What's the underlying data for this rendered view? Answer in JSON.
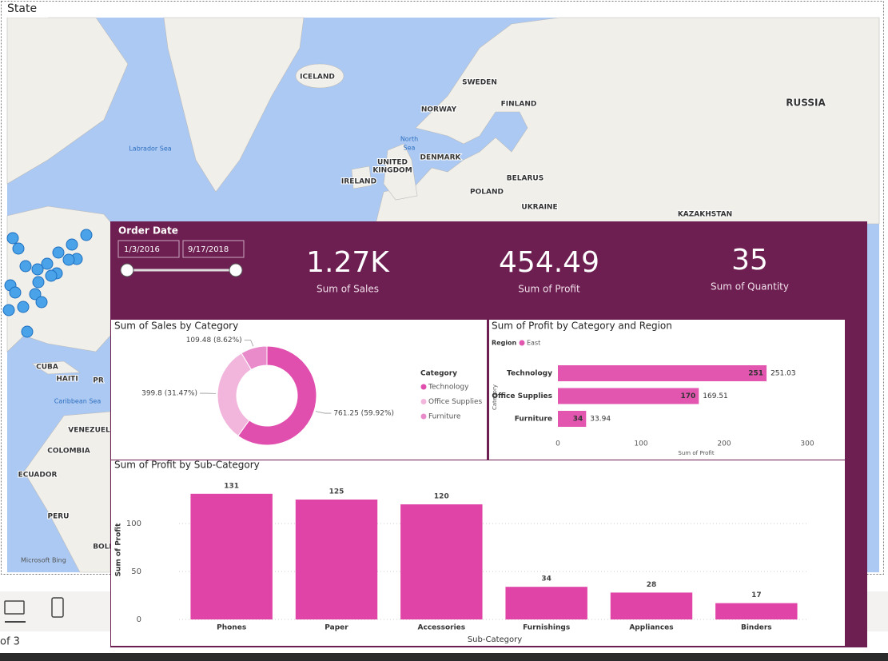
{
  "map": {
    "title": "State",
    "labels": [
      "ICELAND",
      "SWEDEN",
      "FINLAND",
      "RUSSIA",
      "NORWAY",
      "Labrador Sea",
      "North",
      "Sea",
      "DENMARK",
      "UNITED",
      "KINGDOM",
      "IRELAND",
      "BELARUS",
      "POLAND",
      "UKRAINE",
      "KAZAKHSTAN",
      "CUBA",
      "HAITI",
      "PR",
      "Caribbean Sea",
      "VENEZUELA",
      "COLOMBIA",
      "ECUADOR",
      "PERU",
      "BOLI"
    ],
    "attribution": "Microsoft Bing"
  },
  "slicer": {
    "title": "Order Date",
    "start": "1/3/2016",
    "end": "9/17/2018"
  },
  "cards": [
    {
      "value": "1.27K",
      "label": "Sum of Sales"
    },
    {
      "value": "454.49",
      "label": "Sum of Profit"
    },
    {
      "value": "35",
      "label": "Sum of Quantity"
    }
  ],
  "chart_data": [
    {
      "type": "pie",
      "donut": true,
      "title": "Sum of Sales by Category",
      "legend_title": "Category",
      "categories": [
        "Technology",
        "Office Supplies",
        "Furniture"
      ],
      "values": [
        761.25,
        399.8,
        109.48
      ],
      "value_labels": [
        "761.25 (59.92%)",
        "399.8 (31.47%)",
        "109.48 (8.62%)"
      ],
      "colors": [
        "#e04fae",
        "#f2b6dd",
        "#e98acb"
      ]
    },
    {
      "type": "bar",
      "orientation": "horizontal",
      "title": "Sum of Profit by Category and Region",
      "legend_title": "Region",
      "categories": [
        "Technology",
        "Office Supplies",
        "Furniture"
      ],
      "series": [
        {
          "name": "East",
          "color": "#e256b0",
          "values": [
            251.03,
            169.51,
            33.94
          ],
          "value_labels": [
            "251",
            "170",
            "34"
          ]
        }
      ],
      "xlim": [
        0,
        300
      ],
      "xticks": [
        0,
        100,
        200,
        300
      ],
      "xlabel": "Sum of Profit",
      "ylabel": "Category"
    },
    {
      "type": "bar",
      "title": "Sum of Profit by Sub-Category",
      "categories": [
        "Phones",
        "Paper",
        "Accessories",
        "Furnishings",
        "Appliances",
        "Binders"
      ],
      "values": [
        131,
        125,
        120,
        34,
        28,
        17
      ],
      "color": "#e044a7",
      "ylim": [
        0,
        145
      ],
      "yticks": [
        0,
        50,
        100
      ],
      "grid": true,
      "xlabel": "Sub-Category",
      "ylabel": "Sum of Profit"
    }
  ],
  "footer": {
    "page": "of 3"
  }
}
